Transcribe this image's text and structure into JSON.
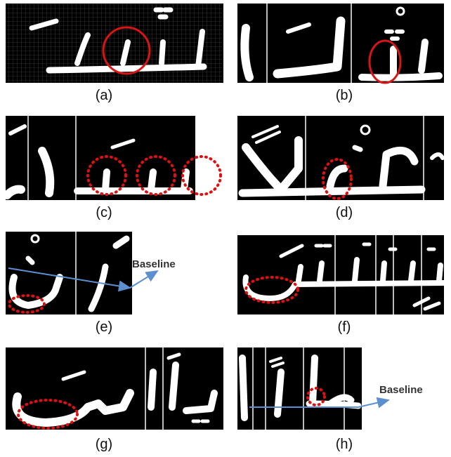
{
  "panels": [
    {
      "label": "(a)"
    },
    {
      "label": "(b)"
    },
    {
      "label": "(c)"
    },
    {
      "label": "(d)"
    },
    {
      "label": "(e)",
      "annotation": "Baseline"
    },
    {
      "label": "(f)"
    },
    {
      "label": "(g)"
    },
    {
      "label": "(h)",
      "annotation": "Baseline"
    }
  ]
}
